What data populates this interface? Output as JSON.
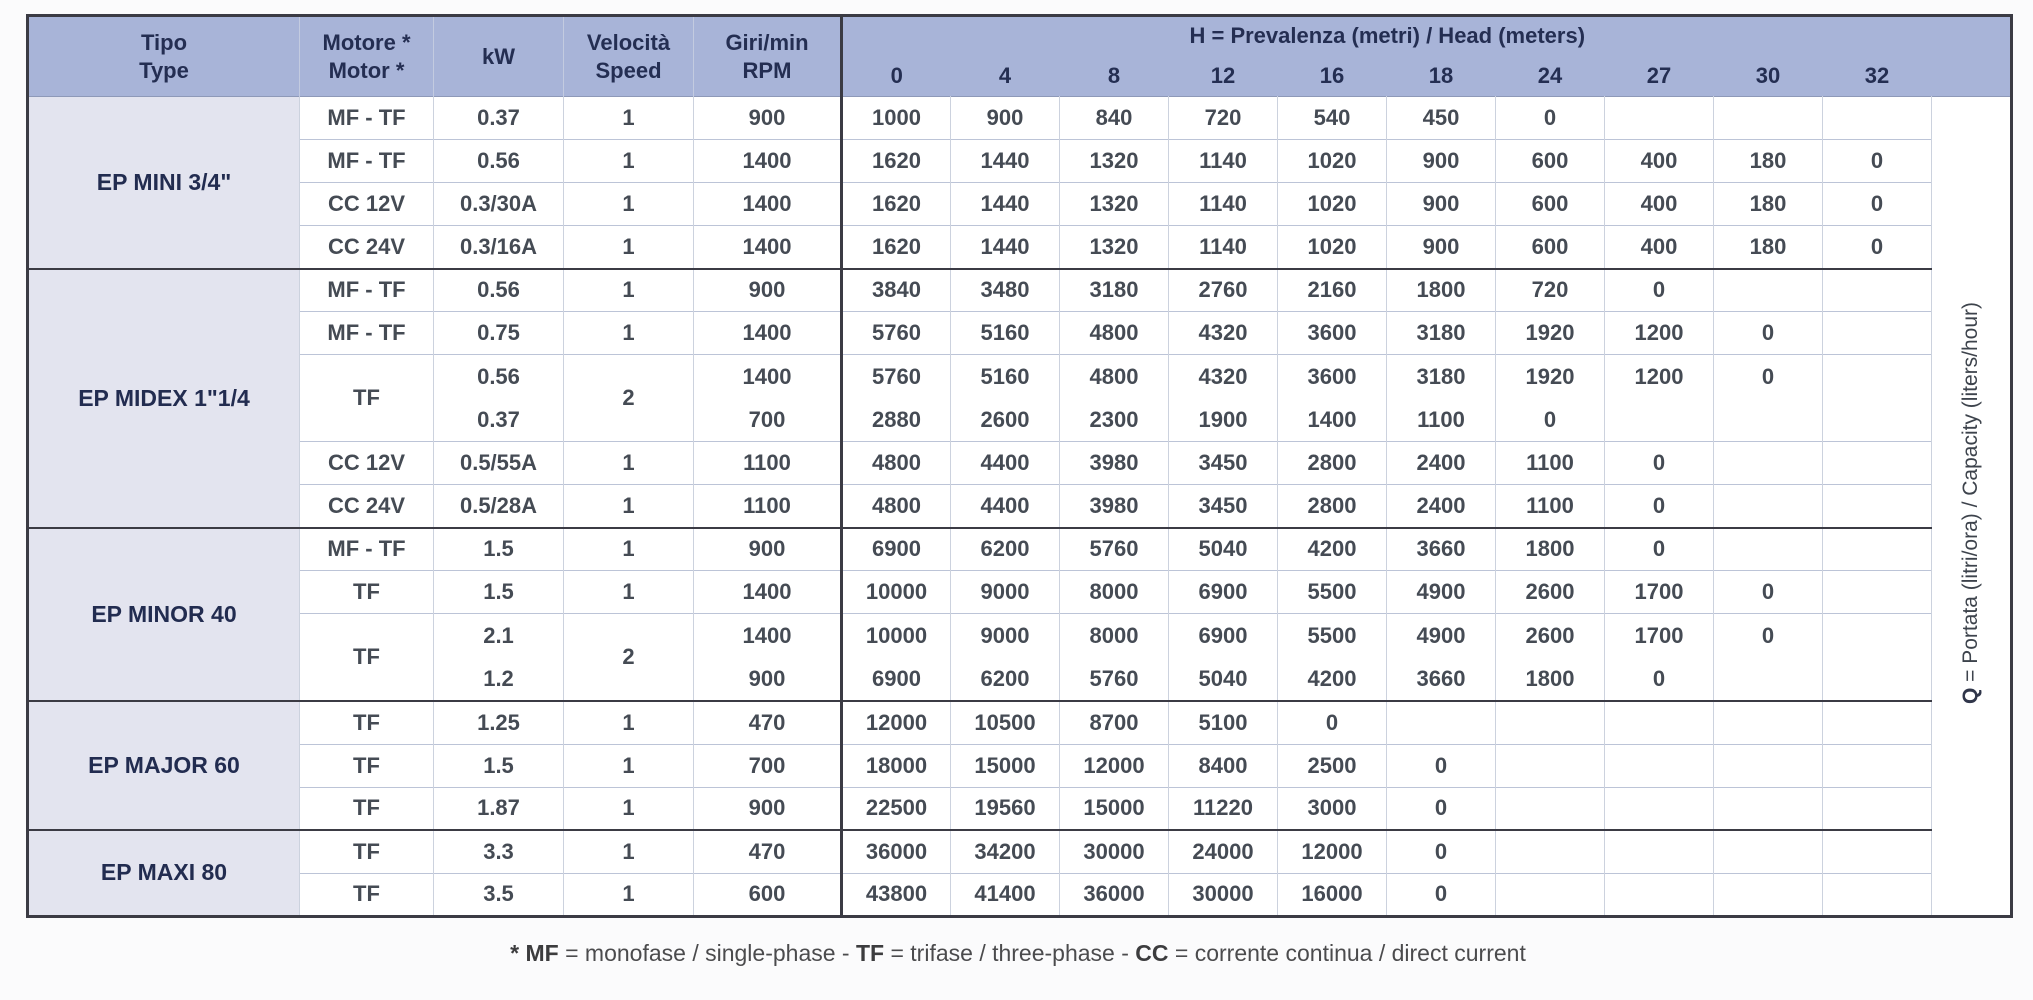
{
  "header": {
    "tipo_line1": "Tipo",
    "tipo_line2": "Type",
    "motore_line1": "Motore *",
    "motore_line2": "Motor *",
    "kw": "kW",
    "velocita_line1": "Velocità",
    "velocita_line2": "Speed",
    "rpm_line1": "Giri/min",
    "rpm_line2": "RPM",
    "h_title_bold": "H",
    "h_title_rest": " = Prevalenza (metri) / Head (meters)",
    "h_columns": [
      "0",
      "4",
      "8",
      "12",
      "16",
      "18",
      "24",
      "27",
      "30",
      "32"
    ]
  },
  "q_label": {
    "bold": "Q",
    "rest": " = Portata (litri/ora) / Capacity (liters/hour)"
  },
  "footnote": [
    {
      "text": "* MF",
      "bold": true
    },
    {
      "text": " = monofase / single-phase - ",
      "bold": false
    },
    {
      "text": "TF",
      "bold": true
    },
    {
      "text": " = trifase / three-phase - ",
      "bold": false
    },
    {
      "text": "CC",
      "bold": true
    },
    {
      "text": " = corrente continua / direct current",
      "bold": false
    }
  ],
  "groups": [
    {
      "type": "EP MINI 3/4\"",
      "rows": [
        {
          "motor": "MF - TF",
          "speed": "1",
          "lines": [
            {
              "kw": "0.37",
              "rpm": "900",
              "values": [
                "1000",
                "900",
                "840",
                "720",
                "540",
                "450",
                "0",
                "",
                "",
                ""
              ]
            }
          ]
        },
        {
          "motor": "MF - TF",
          "speed": "1",
          "lines": [
            {
              "kw": "0.56",
              "rpm": "1400",
              "values": [
                "1620",
                "1440",
                "1320",
                "1140",
                "1020",
                "900",
                "600",
                "400",
                "180",
                "0"
              ]
            }
          ]
        },
        {
          "motor": "CC 12V",
          "speed": "1",
          "lines": [
            {
              "kw": "0.3/30A",
              "rpm": "1400",
              "values": [
                "1620",
                "1440",
                "1320",
                "1140",
                "1020",
                "900",
                "600",
                "400",
                "180",
                "0"
              ]
            }
          ]
        },
        {
          "motor": "CC 24V",
          "speed": "1",
          "lines": [
            {
              "kw": "0.3/16A",
              "rpm": "1400",
              "values": [
                "1620",
                "1440",
                "1320",
                "1140",
                "1020",
                "900",
                "600",
                "400",
                "180",
                "0"
              ]
            }
          ]
        }
      ]
    },
    {
      "type": "EP MIDEX 1\"1/4",
      "rows": [
        {
          "motor": "MF - TF",
          "speed": "1",
          "lines": [
            {
              "kw": "0.56",
              "rpm": "900",
              "values": [
                "3840",
                "3480",
                "3180",
                "2760",
                "2160",
                "1800",
                "720",
                "0",
                "",
                ""
              ]
            }
          ]
        },
        {
          "motor": "MF - TF",
          "speed": "1",
          "lines": [
            {
              "kw": "0.75",
              "rpm": "1400",
              "values": [
                "5760",
                "5160",
                "4800",
                "4320",
                "3600",
                "3180",
                "1920",
                "1200",
                "0",
                ""
              ]
            }
          ]
        },
        {
          "motor": "TF",
          "speed": "2",
          "lines": [
            {
              "kw": "0.56",
              "rpm": "1400",
              "values": [
                "5760",
                "5160",
                "4800",
                "4320",
                "3600",
                "3180",
                "1920",
                "1200",
                "0",
                ""
              ]
            },
            {
              "kw": "0.37",
              "rpm": "700",
              "values": [
                "2880",
                "2600",
                "2300",
                "1900",
                "1400",
                "1100",
                "0",
                "",
                "",
                ""
              ]
            }
          ]
        },
        {
          "motor": "CC 12V",
          "speed": "1",
          "lines": [
            {
              "kw": "0.5/55A",
              "rpm": "1100",
              "values": [
                "4800",
                "4400",
                "3980",
                "3450",
                "2800",
                "2400",
                "1100",
                "0",
                "",
                ""
              ]
            }
          ]
        },
        {
          "motor": "CC 24V",
          "speed": "1",
          "lines": [
            {
              "kw": "0.5/28A",
              "rpm": "1100",
              "values": [
                "4800",
                "4400",
                "3980",
                "3450",
                "2800",
                "2400",
                "1100",
                "0",
                "",
                ""
              ]
            }
          ]
        }
      ]
    },
    {
      "type": "EP MINOR 40",
      "rows": [
        {
          "motor": "MF - TF",
          "speed": "1",
          "lines": [
            {
              "kw": "1.5",
              "rpm": "900",
              "values": [
                "6900",
                "6200",
                "5760",
                "5040",
                "4200",
                "3660",
                "1800",
                "0",
                "",
                ""
              ]
            }
          ]
        },
        {
          "motor": "TF",
          "speed": "1",
          "lines": [
            {
              "kw": "1.5",
              "rpm": "1400",
              "values": [
                "10000",
                "9000",
                "8000",
                "6900",
                "5500",
                "4900",
                "2600",
                "1700",
                "0",
                ""
              ]
            }
          ]
        },
        {
          "motor": "TF",
          "speed": "2",
          "lines": [
            {
              "kw": "2.1",
              "rpm": "1400",
              "values": [
                "10000",
                "9000",
                "8000",
                "6900",
                "5500",
                "4900",
                "2600",
                "1700",
                "0",
                ""
              ]
            },
            {
              "kw": "1.2",
              "rpm": "900",
              "values": [
                "6900",
                "6200",
                "5760",
                "5040",
                "4200",
                "3660",
                "1800",
                "0",
                "",
                ""
              ]
            }
          ]
        }
      ]
    },
    {
      "type": "EP MAJOR 60",
      "rows": [
        {
          "motor": "TF",
          "speed": "1",
          "lines": [
            {
              "kw": "1.25",
              "rpm": "470",
              "values": [
                "12000",
                "10500",
                "8700",
                "5100",
                "0",
                "",
                "",
                "",
                "",
                ""
              ]
            }
          ]
        },
        {
          "motor": "TF",
          "speed": "1",
          "lines": [
            {
              "kw": "1.5",
              "rpm": "700",
              "values": [
                "18000",
                "15000",
                "12000",
                "8400",
                "2500",
                "0",
                "",
                "",
                "",
                ""
              ]
            }
          ]
        },
        {
          "motor": "TF",
          "speed": "1",
          "lines": [
            {
              "kw": "1.87",
              "rpm": "900",
              "values": [
                "22500",
                "19560",
                "15000",
                "11220",
                "3000",
                "0",
                "",
                "",
                "",
                ""
              ]
            }
          ]
        }
      ]
    },
    {
      "type": "EP MAXI 80",
      "rows": [
        {
          "motor": "TF",
          "speed": "1",
          "lines": [
            {
              "kw": "3.3",
              "rpm": "470",
              "values": [
                "36000",
                "34200",
                "30000",
                "24000",
                "12000",
                "0",
                "",
                "",
                "",
                ""
              ]
            }
          ]
        },
        {
          "motor": "TF",
          "speed": "1",
          "lines": [
            {
              "kw": "3.5",
              "rpm": "600",
              "values": [
                "43800",
                "41400",
                "36000",
                "30000",
                "16000",
                "0",
                "",
                "",
                "",
                ""
              ]
            }
          ]
        }
      ]
    }
  ],
  "colors": {
    "header_bg": "#a8b4d8",
    "tipo_column_bg": "#e3e4ef",
    "dark_border": "#3b3b44",
    "header_text": "#242e52",
    "body_text": "#454b54"
  }
}
